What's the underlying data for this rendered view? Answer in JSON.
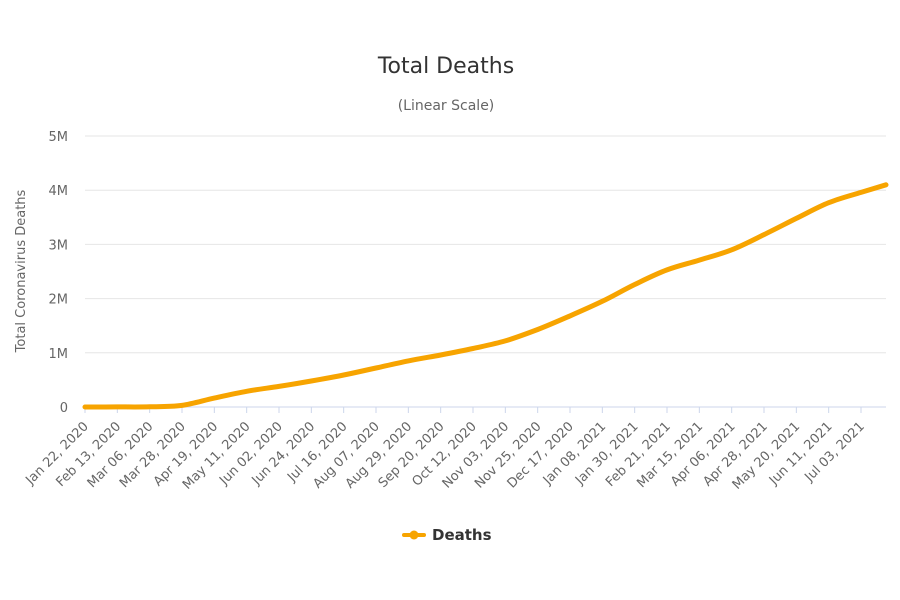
{
  "chart_data": {
    "type": "line",
    "title": "Total Deaths",
    "subtitle": "(Linear Scale)",
    "xlabel": "",
    "ylabel": "Total Coronavirus Deaths",
    "ylim": [
      0,
      5000000
    ],
    "yticks": [
      {
        "value": 0,
        "label": "0"
      },
      {
        "value": 1000000,
        "label": "1M"
      },
      {
        "value": 2000000,
        "label": "2M"
      },
      {
        "value": 3000000,
        "label": "3M"
      },
      {
        "value": 4000000,
        "label": "4M"
      },
      {
        "value": 5000000,
        "label": "5M"
      }
    ],
    "xlim": [
      "2020-01-22",
      "2021-07-20"
    ],
    "xticks": [
      {
        "date": "2020-01-22",
        "label": "Jan 22, 2020"
      },
      {
        "date": "2020-02-13",
        "label": "Feb 13, 2020"
      },
      {
        "date": "2020-03-06",
        "label": "Mar 06, 2020"
      },
      {
        "date": "2020-03-28",
        "label": "Mar 28, 2020"
      },
      {
        "date": "2020-04-19",
        "label": "Apr 19, 2020"
      },
      {
        "date": "2020-05-11",
        "label": "May 11, 2020"
      },
      {
        "date": "2020-06-02",
        "label": "Jun 02, 2020"
      },
      {
        "date": "2020-06-24",
        "label": "Jun 24, 2020"
      },
      {
        "date": "2020-07-16",
        "label": "Jul 16, 2020"
      },
      {
        "date": "2020-08-07",
        "label": "Aug 07, 2020"
      },
      {
        "date": "2020-08-29",
        "label": "Aug 29, 2020"
      },
      {
        "date": "2020-09-20",
        "label": "Sep 20, 2020"
      },
      {
        "date": "2020-10-12",
        "label": "Oct 12, 2020"
      },
      {
        "date": "2020-11-03",
        "label": "Nov 03, 2020"
      },
      {
        "date": "2020-11-25",
        "label": "Nov 25, 2020"
      },
      {
        "date": "2020-12-17",
        "label": "Dec 17, 2020"
      },
      {
        "date": "2021-01-08",
        "label": "Jan 08, 2021"
      },
      {
        "date": "2021-01-30",
        "label": "Jan 30, 2021"
      },
      {
        "date": "2021-02-21",
        "label": "Feb 21, 2021"
      },
      {
        "date": "2021-03-15",
        "label": "Mar 15, 2021"
      },
      {
        "date": "2021-04-06",
        "label": "Apr 06, 2021"
      },
      {
        "date": "2021-04-28",
        "label": "Apr 28, 2021"
      },
      {
        "date": "2021-05-20",
        "label": "May 20, 2021"
      },
      {
        "date": "2021-06-11",
        "label": "Jun 11, 2021"
      },
      {
        "date": "2021-07-03",
        "label": "Jul 03, 2021"
      }
    ],
    "grid": true,
    "legend": {
      "position": "bottom-center",
      "entries": [
        "Deaths"
      ]
    },
    "colors": {
      "series": "#f7a400",
      "grid": "#e6e6e6",
      "baseline": "#ccd6eb"
    },
    "series": [
      {
        "name": "Deaths",
        "points": [
          {
            "x": "2020-01-22",
            "y": 17
          },
          {
            "x": "2020-02-13",
            "y": 1400
          },
          {
            "x": "2020-03-06",
            "y": 3500
          },
          {
            "x": "2020-03-28",
            "y": 30000
          },
          {
            "x": "2020-04-19",
            "y": 165000
          },
          {
            "x": "2020-05-11",
            "y": 290000
          },
          {
            "x": "2020-06-02",
            "y": 380000
          },
          {
            "x": "2020-06-24",
            "y": 480000
          },
          {
            "x": "2020-07-16",
            "y": 590000
          },
          {
            "x": "2020-08-07",
            "y": 720000
          },
          {
            "x": "2020-08-29",
            "y": 850000
          },
          {
            "x": "2020-09-20",
            "y": 960000
          },
          {
            "x": "2020-10-12",
            "y": 1080000
          },
          {
            "x": "2020-11-03",
            "y": 1220000
          },
          {
            "x": "2020-11-25",
            "y": 1430000
          },
          {
            "x": "2020-12-17",
            "y": 1680000
          },
          {
            "x": "2021-01-08",
            "y": 1950000
          },
          {
            "x": "2021-01-30",
            "y": 2260000
          },
          {
            "x": "2021-02-21",
            "y": 2530000
          },
          {
            "x": "2021-03-15",
            "y": 2710000
          },
          {
            "x": "2021-04-06",
            "y": 2900000
          },
          {
            "x": "2021-04-28",
            "y": 3180000
          },
          {
            "x": "2021-05-20",
            "y": 3480000
          },
          {
            "x": "2021-06-11",
            "y": 3770000
          },
          {
            "x": "2021-07-03",
            "y": 3960000
          },
          {
            "x": "2021-07-20",
            "y": 4100000
          }
        ]
      }
    ]
  }
}
